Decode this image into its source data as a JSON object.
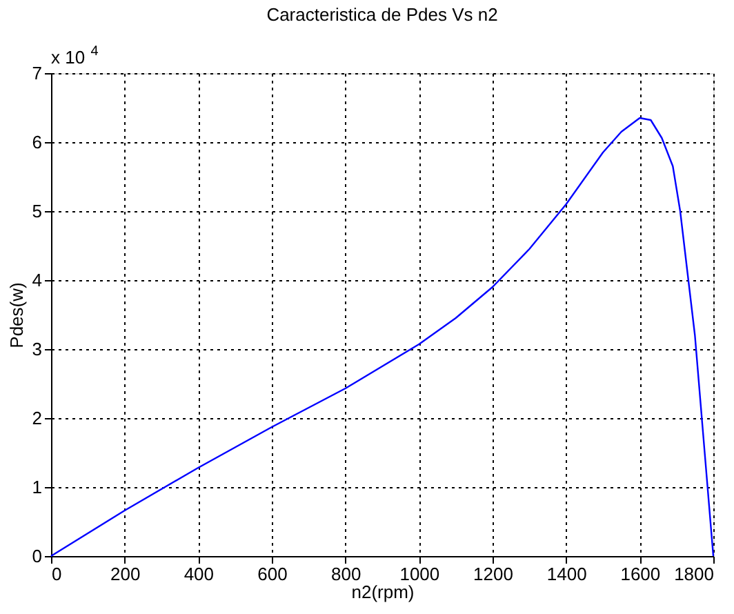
{
  "chart_data": {
    "type": "line",
    "title": "Caracteristica de Pdes Vs n2",
    "xlabel": "n2(rpm)",
    "ylabel": "Pdes(w)",
    "annotations": [
      "x 10$^{4}$"
    ],
    "xlim": [
      0,
      1800
    ],
    "xticks": [
      0,
      200,
      400,
      600,
      800,
      1000,
      1200,
      1400,
      1600,
      1800
    ],
    "ylim": [
      0,
      7
    ],
    "yticks": [
      0,
      1,
      2,
      3,
      4,
      5,
      6,
      7
    ],
    "grid": true,
    "marker": "none",
    "line_style": "solid",
    "series": [
      {
        "color": "#0000ff",
        "x": [
          0,
          200,
          400,
          600,
          800,
          1000,
          1100,
          1200,
          1300,
          1400,
          1500,
          1550,
          1600,
          1630,
          1660,
          1690,
          1710,
          1730,
          1750,
          1775,
          1800
        ],
        "values": [
          0,
          0.66,
          1.28,
          1.87,
          2.43,
          3.07,
          3.45,
          3.9,
          4.45,
          5.1,
          5.85,
          6.15,
          6.35,
          6.32,
          6.06,
          5.65,
          5.0,
          4.1,
          3.2,
          1.6,
          0
        ]
      }
    ]
  }
}
